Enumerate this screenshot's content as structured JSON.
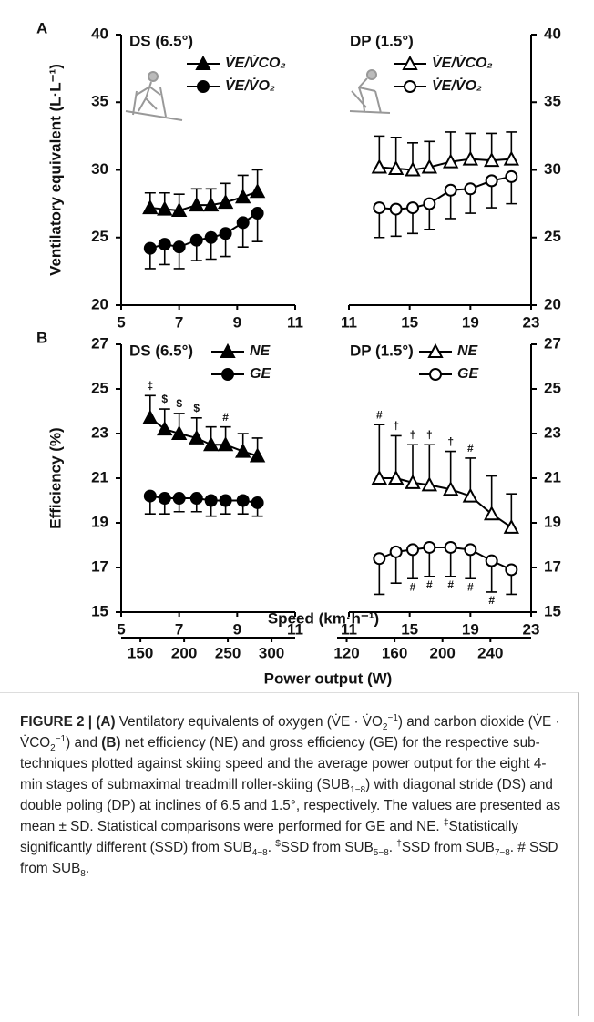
{
  "chart_data": [
    {
      "type": "line",
      "panel_label": "A",
      "title": "DS (6.5°)",
      "ylabel": "Ventilatory equivalent (L·L⁻¹)",
      "x": [
        6.0,
        6.5,
        7.0,
        7.6,
        8.1,
        8.6,
        9.2,
        9.7
      ],
      "xlim": [
        5,
        11
      ],
      "xticks": [
        5,
        7,
        9,
        11
      ],
      "ylim": [
        20,
        40
      ],
      "yticks": [
        20,
        25,
        30,
        35,
        40
      ],
      "y_axis_side": "left",
      "series": [
        {
          "name": "V̇E/V̇CO₂",
          "color": "#000000",
          "marker": "triangle",
          "marker_fill": "#000000",
          "error_direction": "up",
          "values": [
            27.2,
            27.1,
            27.0,
            27.4,
            27.4,
            27.6,
            28.0,
            28.4
          ],
          "errors": [
            1.1,
            1.2,
            1.2,
            1.2,
            1.2,
            1.4,
            1.6,
            1.6
          ]
        },
        {
          "name": "V̇E/V̇O₂",
          "color": "#000000",
          "marker": "circle",
          "marker_fill": "#000000",
          "error_direction": "down",
          "values": [
            24.2,
            24.5,
            24.3,
            24.8,
            25.0,
            25.3,
            26.1,
            26.8
          ],
          "errors": [
            1.5,
            1.5,
            1.6,
            1.5,
            1.6,
            1.7,
            1.8,
            2.1
          ]
        }
      ]
    },
    {
      "type": "line",
      "title": "DP (1.5°)",
      "x": [
        13.0,
        14.1,
        15.2,
        16.3,
        17.7,
        19.0,
        20.4,
        21.7
      ],
      "xlim": [
        11,
        23
      ],
      "xticks": [
        11,
        15,
        19,
        23
      ],
      "ylim": [
        20,
        40
      ],
      "yticks": [
        20,
        25,
        30,
        35,
        40
      ],
      "y_axis_side": "right",
      "series": [
        {
          "name": "V̇E/V̇CO₂",
          "color": "#000000",
          "marker": "triangle",
          "marker_fill": "#ffffff",
          "error_direction": "up",
          "values": [
            30.2,
            30.1,
            30.0,
            30.2,
            30.6,
            30.8,
            30.7,
            30.8
          ],
          "errors": [
            2.3,
            2.3,
            2.0,
            1.9,
            2.2,
            1.9,
            2.0,
            2.0
          ]
        },
        {
          "name": "V̇E/V̇O₂",
          "color": "#000000",
          "marker": "circle",
          "marker_fill": "#ffffff",
          "error_direction": "down",
          "values": [
            27.2,
            27.1,
            27.2,
            27.5,
            28.5,
            28.6,
            29.2,
            29.5
          ],
          "errors": [
            2.2,
            2.0,
            1.9,
            1.9,
            2.1,
            1.8,
            2.0,
            2.0
          ]
        }
      ]
    },
    {
      "type": "line",
      "panel_label": "B",
      "title": "DS (6.5°)",
      "ylabel": "Efficiency (%)",
      "xlabel": "Speed (km·h⁻¹)",
      "x": [
        6.0,
        6.5,
        7.0,
        7.6,
        8.1,
        8.6,
        9.2,
        9.7
      ],
      "xlim": [
        5,
        11
      ],
      "xticks": [
        5,
        7,
        9,
        11
      ],
      "ylim": [
        15,
        27
      ],
      "yticks": [
        15,
        17,
        19,
        21,
        23,
        25,
        27
      ],
      "y_axis_side": "left",
      "series": [
        {
          "name": "NE",
          "color": "#000000",
          "marker": "triangle",
          "marker_fill": "#000000",
          "error_direction": "up",
          "values": [
            23.7,
            23.2,
            23.0,
            22.8,
            22.5,
            22.5,
            22.2,
            22.0
          ],
          "errors": [
            1.0,
            0.9,
            0.9,
            0.9,
            0.8,
            0.8,
            0.8,
            0.8
          ],
          "annotations": [
            "‡",
            "$",
            "$",
            "$",
            null,
            "#",
            null,
            null
          ]
        },
        {
          "name": "GE",
          "color": "#000000",
          "marker": "circle",
          "marker_fill": "#000000",
          "error_direction": "down",
          "values": [
            20.2,
            20.1,
            20.1,
            20.1,
            20.0,
            20.0,
            20.0,
            19.9
          ],
          "errors": [
            0.8,
            0.7,
            0.6,
            0.6,
            0.7,
            0.6,
            0.6,
            0.6
          ]
        }
      ]
    },
    {
      "type": "line",
      "title": "DP (1.5°)",
      "x": [
        13.0,
        14.1,
        15.2,
        16.3,
        17.7,
        19.0,
        20.4,
        21.7
      ],
      "xlim": [
        11,
        23
      ],
      "xticks": [
        11,
        15,
        19,
        23
      ],
      "ylim": [
        15,
        27
      ],
      "yticks": [
        15,
        17,
        19,
        21,
        23,
        25,
        27
      ],
      "y_axis_side": "right",
      "series": [
        {
          "name": "NE",
          "color": "#000000",
          "marker": "triangle",
          "marker_fill": "#ffffff",
          "error_direction": "up",
          "values": [
            21.0,
            21.0,
            20.8,
            20.7,
            20.5,
            20.2,
            19.4,
            18.8
          ],
          "errors": [
            2.4,
            1.9,
            1.7,
            1.8,
            1.7,
            1.7,
            1.7,
            1.5
          ],
          "annotations": [
            "#",
            "†",
            "†",
            "†",
            "†",
            "#",
            null,
            null
          ]
        },
        {
          "name": "GE",
          "color": "#000000",
          "marker": "circle",
          "marker_fill": "#ffffff",
          "error_direction": "down",
          "values": [
            17.4,
            17.7,
            17.8,
            17.9,
            17.9,
            17.8,
            17.3,
            16.9
          ],
          "errors": [
            1.6,
            1.4,
            1.3,
            1.3,
            1.3,
            1.3,
            1.4,
            1.1
          ],
          "annotations": [
            null,
            null,
            "#",
            "#",
            "#",
            "#",
            "#",
            null
          ]
        }
      ]
    },
    {
      "type": "axis",
      "xlabel": "Power output (W)",
      "xlim": [
        128,
        327
      ],
      "xticks": [
        150,
        200,
        250,
        300
      ]
    },
    {
      "type": "axis",
      "xlim": [
        112,
        274
      ],
      "xticks": [
        120,
        160,
        200,
        240
      ]
    }
  ],
  "caption": {
    "runs": [
      "FIGURE 2 | (A)",
      " Ventilatory equivalents of oxygen (V̇E · V̇O",
      "2",
      "−1",
      ") and carbon dioxide (V̇E · V̇CO",
      "2",
      "−1",
      ") and ",
      "(B)",
      " net efficiency (NE) and gross efficiency (GE) for the respective sub-techniques plotted against skiing speed and the average power output for the eight 4-min stages of submaximal treadmill roller-skiing (SUB",
      "1−8",
      ") with diagonal stride (DS) and double poling (DP) at inclines of 6.5 and 1.5°, respectively. The values are presented as mean ± SD. Statistical comparisons were performed for GE and NE. ",
      "‡",
      "Statistically significantly different (SSD) from SUB",
      "4−8",
      ". ",
      "$",
      "SSD from SUB",
      "5−8",
      ". ",
      "†",
      "SSD from SUB",
      "7−8",
      ". # SSD from SUB",
      "8",
      "."
    ]
  }
}
